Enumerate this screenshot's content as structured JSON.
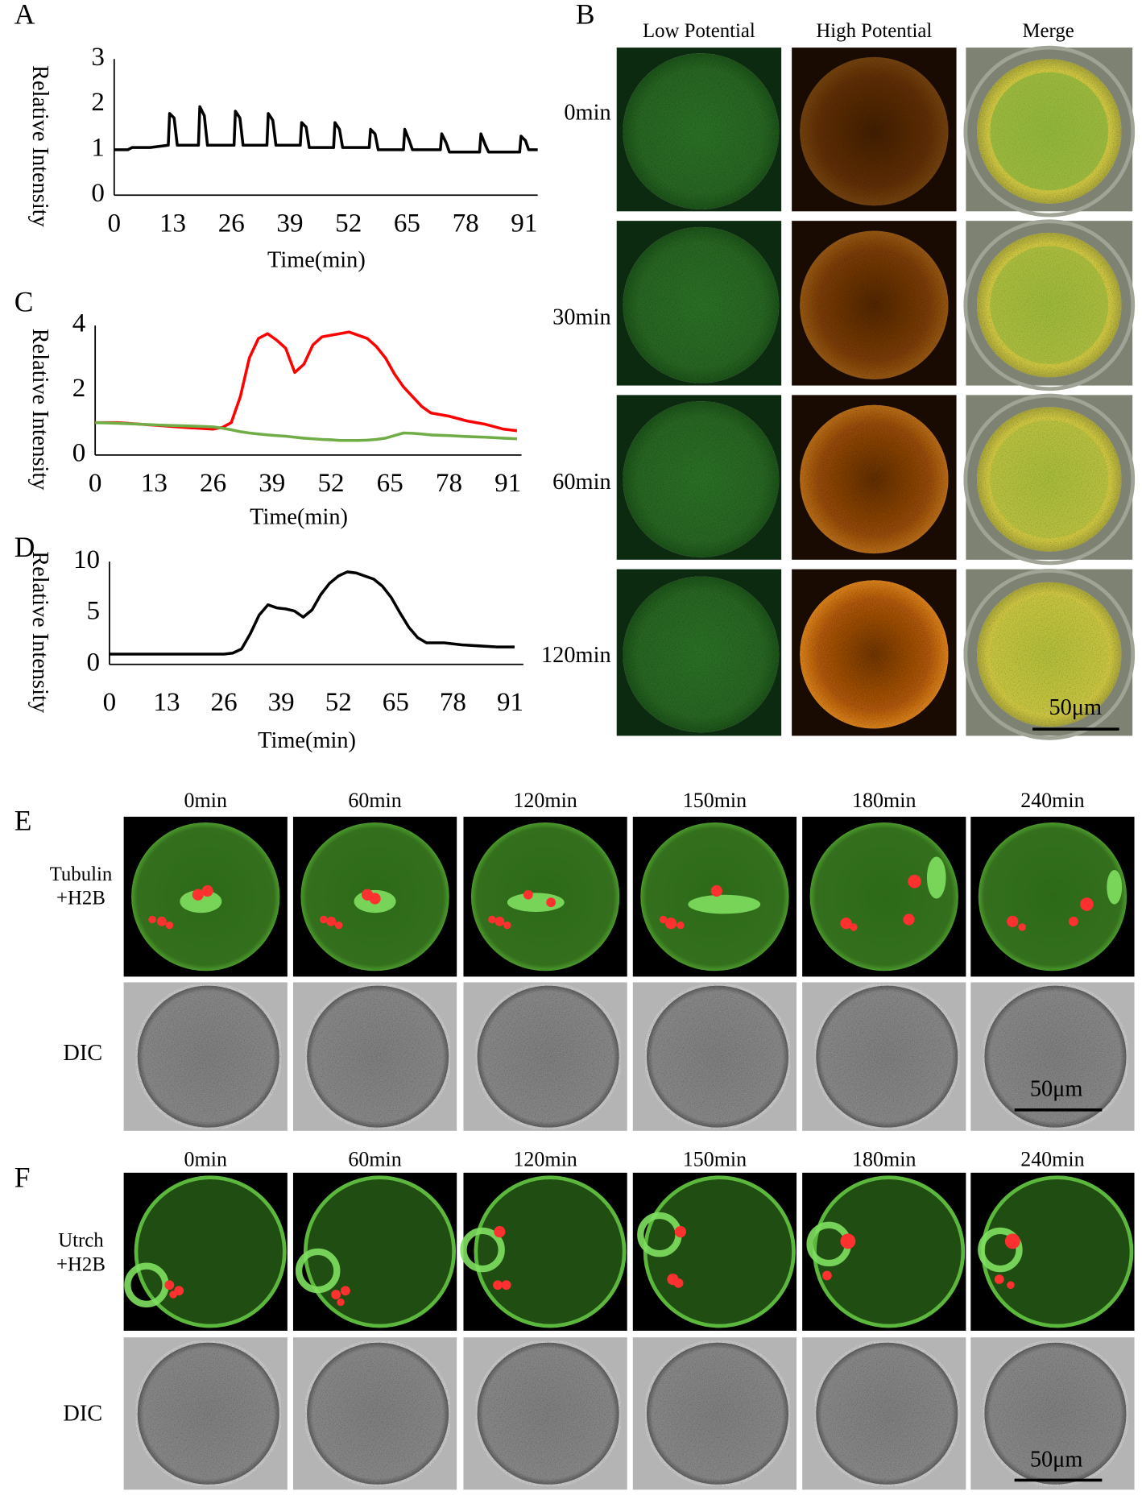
{
  "panel_labels": [
    "A",
    "B",
    "C",
    "D",
    "E",
    "F"
  ],
  "chart_data": [
    {
      "type": "line",
      "x_label": "Time(min)",
      "y_label": "Relative Intensity",
      "x": [
        0,
        3,
        4,
        8,
        12,
        12.3,
        13.3,
        14,
        18.7,
        19,
        20,
        20.7,
        26.6,
        26.9,
        27.9,
        28.6,
        33.9,
        34.2,
        35.2,
        35.9,
        41.3,
        41.6,
        42.6,
        43.3,
        48.7,
        49,
        50,
        50.7,
        56.6,
        56.9,
        57.9,
        58.6,
        64.2,
        64.5,
        65.5,
        66.2,
        72.4,
        72.7,
        73.7,
        74.4,
        81.1,
        81.4,
        82.4,
        83.1,
        90,
        90.3,
        91.3,
        92,
        94
      ],
      "series": [
        {
          "color": "#000000",
          "values": [
            1.0,
            1.0,
            1.05,
            1.05,
            1.1,
            1.8,
            1.7,
            1.1,
            1.1,
            1.95,
            1.75,
            1.1,
            1.1,
            1.85,
            1.7,
            1.1,
            1.1,
            1.8,
            1.65,
            1.1,
            1.1,
            1.6,
            1.5,
            1.05,
            1.05,
            1.6,
            1.45,
            1.05,
            1.05,
            1.45,
            1.35,
            1.0,
            1.0,
            1.45,
            1.2,
            1.0,
            1.0,
            1.35,
            1.15,
            0.95,
            0.95,
            1.35,
            1.1,
            0.95,
            0.95,
            1.3,
            1.2,
            1.0,
            1.0
          ]
        }
      ],
      "xlim": [
        0,
        94
      ],
      "ylim": [
        0,
        3
      ],
      "xticks": [
        0,
        13,
        26,
        39,
        52,
        65,
        78,
        91
      ],
      "yticks": [
        0,
        1,
        2,
        3
      ]
    },
    {
      "type": "line",
      "x_label": "Time(min)",
      "y_label": "Relative Intensity",
      "x": [
        0,
        5,
        10,
        15,
        20,
        26,
        28,
        30,
        32,
        34,
        36,
        38,
        40,
        42,
        44,
        46,
        48,
        50,
        52,
        54,
        56,
        58,
        60,
        62,
        64,
        66,
        68,
        70,
        72,
        74,
        78,
        82,
        86,
        90,
        93
      ],
      "series": [
        {
          "color": "#ff0000",
          "values": [
            1.0,
            1.0,
            0.95,
            0.9,
            0.85,
            0.8,
            0.85,
            1.0,
            1.8,
            3.0,
            3.6,
            3.75,
            3.55,
            3.3,
            2.55,
            2.8,
            3.4,
            3.65,
            3.7,
            3.75,
            3.8,
            3.7,
            3.6,
            3.35,
            3.0,
            2.5,
            2.1,
            1.8,
            1.5,
            1.3,
            1.2,
            1.05,
            0.95,
            0.8,
            0.75
          ]
        },
        {
          "color": "#70ad47",
          "values": [
            1.0,
            0.98,
            0.95,
            0.92,
            0.9,
            0.87,
            0.83,
            0.78,
            0.72,
            0.68,
            0.65,
            0.62,
            0.6,
            0.58,
            0.55,
            0.52,
            0.5,
            0.48,
            0.47,
            0.45,
            0.45,
            0.45,
            0.46,
            0.48,
            0.52,
            0.6,
            0.68,
            0.67,
            0.65,
            0.62,
            0.6,
            0.57,
            0.55,
            0.52,
            0.5
          ]
        }
      ],
      "xlim": [
        0,
        94
      ],
      "ylim": [
        0,
        4
      ],
      "xticks": [
        0,
        13,
        26,
        39,
        52,
        65,
        78,
        91
      ],
      "yticks": [
        0,
        2,
        4
      ]
    },
    {
      "type": "line",
      "x_label": "Time(min)",
      "y_label": "Relative Intensity",
      "x": [
        0,
        10,
        20,
        26,
        28,
        30,
        32,
        34,
        36,
        38,
        40,
        42,
        44,
        46,
        48,
        50,
        52,
        54,
        56,
        58,
        60,
        62,
        64,
        66,
        68,
        70,
        72,
        76,
        80,
        84,
        88,
        92
      ],
      "series": [
        {
          "color": "#000000",
          "values": [
            1,
            1,
            1,
            1,
            1.1,
            1.5,
            3.0,
            4.8,
            5.8,
            5.5,
            5.4,
            5.2,
            4.6,
            5.3,
            6.8,
            7.9,
            8.6,
            9.0,
            8.9,
            8.6,
            8.3,
            7.6,
            6.5,
            5.0,
            3.6,
            2.6,
            2.1,
            2.1,
            1.9,
            1.8,
            1.7,
            1.7
          ]
        }
      ],
      "xlim": [
        0,
        94
      ],
      "ylim": [
        0,
        10
      ],
      "xticks": [
        0,
        13,
        26,
        39,
        52,
        65,
        78,
        91
      ],
      "yticks": [
        0,
        5,
        10
      ]
    }
  ],
  "panel_b": {
    "columns": [
      "Low Potential",
      "High Potential",
      "Merge"
    ],
    "rows": [
      "0min",
      "30min",
      "60min",
      "120min"
    ],
    "scale_bar": "50μm"
  },
  "panel_e": {
    "times": [
      "0min",
      "60min",
      "120min",
      "150min",
      "180min",
      "240min"
    ],
    "fluorescence_label": [
      "Tubulin",
      "+H2B"
    ],
    "dic_label": "DIC",
    "scale_bar": "50μm"
  },
  "panel_f": {
    "times": [
      "0min",
      "60min",
      "120min",
      "150min",
      "180min",
      "240min"
    ],
    "fluorescence_label": [
      "Utrch",
      "+H2B"
    ],
    "dic_label": "DIC",
    "scale_bar": "50μm"
  }
}
